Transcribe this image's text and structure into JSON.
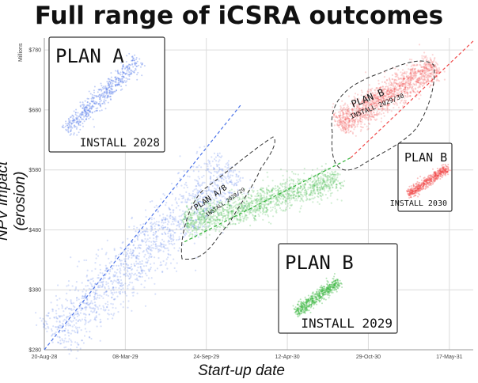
{
  "chart_data": {
    "type": "scatter",
    "title": "Full range of iCSRA outcomes",
    "xlabel": "Start-up date",
    "ylabel": "NPV impact (erosion)",
    "yunit": "Millions",
    "x_ticks": [
      "20-Aug-28",
      "08-Mar-29",
      "24-Sep-29",
      "12-Apr-30",
      "29-Oct-30",
      "17-May-31"
    ],
    "y_ticks": [
      "$280",
      "$380",
      "$480",
      "$580",
      "$680",
      "$780"
    ],
    "ylim": [
      280,
      800
    ],
    "xlim": [
      "2028-08-20",
      "2031-07-15"
    ],
    "grid": true,
    "series": [
      {
        "color": "#4a72e8",
        "clusters": [
          {
            "x_start": "2028-09-10",
            "y_start": 300,
            "x_end": "2029-12-01",
            "y_end": 585,
            "spread": 50
          }
        ]
      },
      {
        "color": "#2fb135",
        "clusters": [
          {
            "x_start": "2029-08-01",
            "y_start": 490,
            "x_end": "2030-08-20",
            "y_end": 565,
            "spread": 26
          }
        ]
      },
      {
        "color": "#f04848",
        "clusters": [
          {
            "x_start": "2030-08-15",
            "y_start": 655,
            "x_end": "2031-04-15",
            "y_end": 755,
            "spread": 26
          }
        ]
      }
    ],
    "trend_lines": [
      {
        "color": "#4a72e8",
        "x": [
          "2028-08-20",
          "2029-12-20"
        ],
        "y": [
          280,
          690
        ]
      },
      {
        "color": "#2fb135",
        "x": [
          "2029-08-01",
          "2030-09-15"
        ],
        "y": [
          460,
          600
        ]
      },
      {
        "color": "#f04848",
        "x": [
          "2030-09-15",
          "2031-07-15"
        ],
        "y": [
          600,
          795
        ]
      }
    ],
    "annotations": [
      {
        "line1": "PLAN A/B",
        "line2": "INSTALL 2028/29"
      },
      {
        "line1": "PLAN B",
        "line2": "INSTALL 2029/30"
      }
    ],
    "insets": [
      {
        "name": "PLAN A",
        "label": "INSTALL 2028",
        "color": "#4a72e8"
      },
      {
        "name": "PLAN B",
        "label": "INSTALL 2030",
        "color": "#f04848"
      },
      {
        "name": "PLAN B",
        "label": "INSTALL 2029",
        "color": "#2fb135"
      }
    ]
  }
}
